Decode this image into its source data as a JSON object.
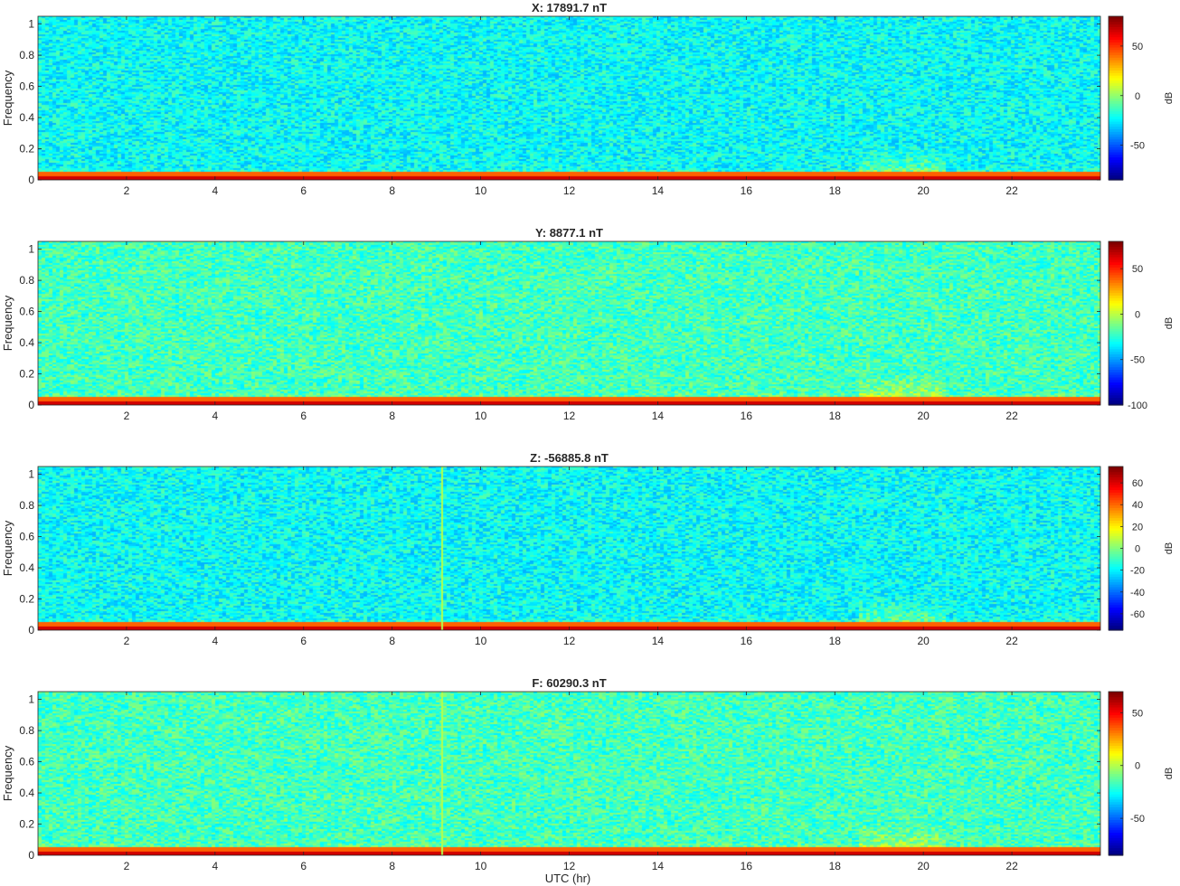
{
  "figure": {
    "xlabel": "UTC (hr)"
  },
  "chart_data": [
    {
      "type": "heatmap",
      "title": "X: 17891.7 nT",
      "xlabel": "UTC (hr)",
      "ylabel": "Frequency",
      "xlim": [
        0,
        24
      ],
      "ylim": [
        0,
        1.05
      ],
      "xticks": [
        2,
        4,
        6,
        8,
        10,
        12,
        14,
        16,
        18,
        20,
        22
      ],
      "yticks": [
        0,
        0.2,
        0.4,
        0.6,
        0.8,
        1
      ],
      "colorbar": {
        "label": "dB",
        "range": [
          -85,
          80
        ],
        "ticks": [
          -50,
          0,
          50
        ]
      },
      "colormap": "jet"
    },
    {
      "type": "heatmap",
      "title": "Y: 8877.1 nT",
      "xlabel": "UTC (hr)",
      "ylabel": "Frequency",
      "xlim": [
        0,
        24
      ],
      "ylim": [
        0,
        1.05
      ],
      "xticks": [
        2,
        4,
        6,
        8,
        10,
        12,
        14,
        16,
        18,
        20,
        22
      ],
      "yticks": [
        0,
        0.2,
        0.4,
        0.6,
        0.8,
        1
      ],
      "colorbar": {
        "label": "dB",
        "range": [
          -100,
          80
        ],
        "ticks": [
          -100,
          -50,
          0,
          50
        ]
      },
      "colormap": "jet"
    },
    {
      "type": "heatmap",
      "title": "Z: -56885.8 nT",
      "xlabel": "UTC (hr)",
      "ylabel": "Frequency",
      "xlim": [
        0,
        24
      ],
      "ylim": [
        0,
        1.05
      ],
      "xticks": [
        2,
        4,
        6,
        8,
        10,
        12,
        14,
        16,
        18,
        20,
        22
      ],
      "yticks": [
        0,
        0.2,
        0.4,
        0.6,
        0.8,
        1
      ],
      "colorbar": {
        "label": "dB",
        "range": [
          -75,
          75
        ],
        "ticks": [
          -60,
          -40,
          -20,
          0,
          20,
          40,
          60
        ]
      },
      "colormap": "jet"
    },
    {
      "type": "heatmap",
      "title": "F: 60290.3 nT",
      "xlabel": "UTC (hr)",
      "ylabel": "Frequency",
      "xlim": [
        0,
        24
      ],
      "ylim": [
        0,
        1.05
      ],
      "xticks": [
        2,
        4,
        6,
        8,
        10,
        12,
        14,
        16,
        18,
        20,
        22
      ],
      "yticks": [
        0,
        0.2,
        0.4,
        0.6,
        0.8,
        1
      ],
      "colorbar": {
        "label": "dB",
        "range": [
          -85,
          70
        ],
        "ticks": [
          -50,
          0,
          50
        ]
      },
      "colormap": "jet"
    }
  ]
}
